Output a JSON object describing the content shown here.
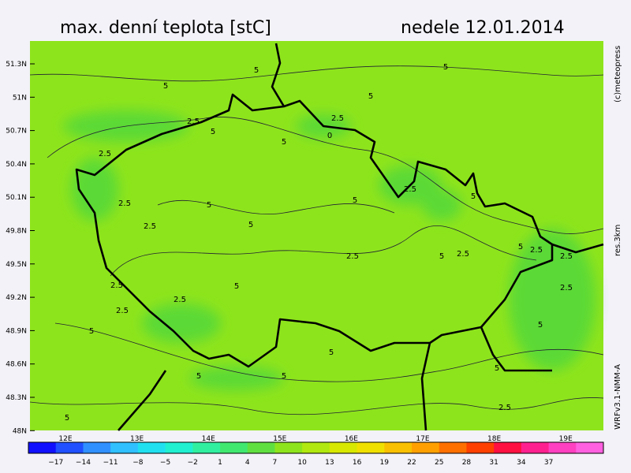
{
  "header": {
    "title": "max. denní teplota [stC]",
    "date": "nedele 12.01.2014"
  },
  "map": {
    "lat_labels": [
      "51.3N",
      "51N",
      "50.7N",
      "50.4N",
      "50.1N",
      "49.8N",
      "49.5N",
      "49.2N",
      "48.9N",
      "48.6N",
      "48.3N",
      "48N"
    ],
    "lon_labels": [
      "12E",
      "13E",
      "14E",
      "15E",
      "16E",
      "17E",
      "18E",
      "19E"
    ],
    "contour_labels": [
      "5",
      "5",
      "5",
      "5",
      "2.5",
      "2.5",
      "0",
      "2.5",
      "5",
      "5",
      "2.5",
      "5",
      "2.5",
      "5",
      "2.5",
      "5",
      "5",
      "2.5",
      "2.5",
      "5",
      "2.5",
      "2.5",
      "2.5",
      "5",
      "5",
      "2.5",
      "2.5",
      "5",
      "2.5",
      "5",
      "5",
      "5",
      "5",
      "5",
      "2.5",
      "5"
    ]
  },
  "colorbar": {
    "ticks": [
      "−17",
      "−14",
      "−11",
      "−8",
      "−5",
      "−2",
      "1",
      "4",
      "7",
      "10",
      "13",
      "16",
      "19",
      "22",
      "25",
      "28",
      "31",
      "34",
      "37"
    ]
  },
  "side": {
    "credit": "(c)meteopress",
    "resolution": "res.3km",
    "model": "WRFv3.1-NMM-A"
  }
}
